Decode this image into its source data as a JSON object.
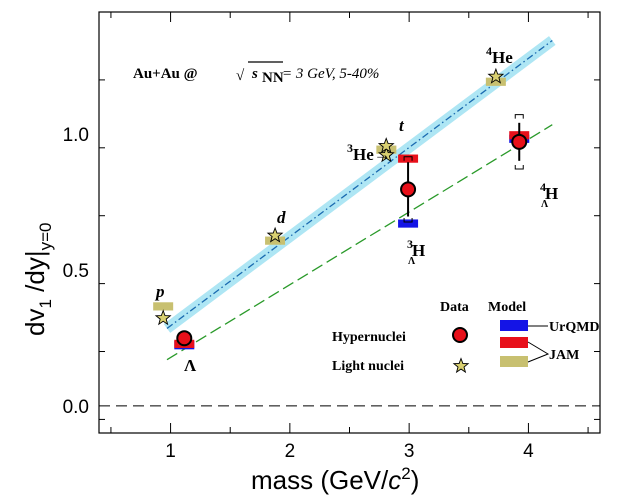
{
  "chart_data": {
    "type": "scatter",
    "title": "Au+Au @ √sNN = 3 GeV, 5-40%",
    "annotation": {
      "prefix": "Au+Au @",
      "sqrt_symbol": "√",
      "s_var": "s",
      "s_sub": "NN",
      "rest": " = 3 GeV, 5-40%"
    },
    "xlabel": {
      "main": "mass (GeV/",
      "c": "c",
      "sup": "2",
      "close": ")"
    },
    "ylabel": {
      "d1": "dv",
      "sub1": "1",
      "mid": " /dy|",
      "sub2": "y=0"
    },
    "xlim": [
      0.4,
      4.6
    ],
    "ylim": [
      -0.1,
      1.45
    ],
    "xticks": [
      1,
      2,
      3,
      4
    ],
    "xtick_labels": [
      "1",
      "2",
      "3",
      "4"
    ],
    "yticks": [
      0.0,
      0.5,
      1.0
    ],
    "ytick_labels": [
      "0.0",
      "0.5",
      "1.0"
    ],
    "reference_line_y": 0.0,
    "series": [
      {
        "name": "Hypernuclei",
        "marker": "circle",
        "color": "#e8101a",
        "points": [
          {
            "x": 1.115,
            "y": 0.249,
            "yerr": 0.02
          },
          {
            "x": 2.991,
            "y": 0.797,
            "yerr": 0.1,
            "ysys": 0.12
          },
          {
            "x": 3.923,
            "y": 0.972,
            "yerr": 0.07,
            "ysys": 0.1
          }
        ]
      },
      {
        "name": "Light nuclei",
        "marker": "star",
        "color": "#d9d070",
        "points": [
          {
            "x": 0.938,
            "y": 0.323
          },
          {
            "x": 1.876,
            "y": 0.627
          },
          {
            "x": 2.809,
            "y": 0.923
          },
          {
            "x": 2.808,
            "y": 0.957
          },
          {
            "x": 3.727,
            "y": 1.212
          }
        ]
      },
      {
        "name": "UrQMD",
        "marker": "band",
        "color": "#1414e6",
        "points": [
          {
            "x": 1.115,
            "y": 0.225
          },
          {
            "x": 2.991,
            "y": 0.673
          },
          {
            "x": 3.923,
            "y": 0.985
          }
        ]
      },
      {
        "name": "JAM",
        "marker": "band",
        "color": "#e8101a",
        "points": [
          {
            "x": 1.115,
            "y": 0.23
          },
          {
            "x": 2.991,
            "y": 0.912
          },
          {
            "x": 3.923,
            "y": 0.998
          }
        ]
      },
      {
        "name": "JAM",
        "marker": "band",
        "color": "#c8c070",
        "points": [
          {
            "x": 0.938,
            "y": 0.368
          },
          {
            "x": 1.876,
            "y": 0.61
          },
          {
            "x": 2.809,
            "y": 0.945
          },
          {
            "x": 3.727,
            "y": 1.195
          }
        ]
      }
    ],
    "fits": [
      {
        "x": [
          0.97,
          4.2
        ],
        "y": [
          0.285,
          1.345
        ],
        "color": "#1a6ab0",
        "style": "dashdot",
        "band_color": "#aee6f4"
      },
      {
        "x": [
          0.97,
          4.2
        ],
        "y": [
          0.17,
          1.035
        ],
        "color": "#2a9a2a",
        "style": "dashed"
      }
    ],
    "point_labels": [
      {
        "key": "p",
        "text": "p",
        "italic": true
      },
      {
        "key": "d",
        "text": "d",
        "italic": true
      },
      {
        "key": "t",
        "text": "t",
        "italic": true
      },
      {
        "key": "he3",
        "sup": "3",
        "text": "He",
        "arrow": "→"
      },
      {
        "key": "he4",
        "sup": "4",
        "text": "He"
      },
      {
        "key": "lambda",
        "text": "Λ"
      },
      {
        "key": "h3l",
        "sup": "3",
        "sub": "Λ",
        "text": "H"
      },
      {
        "key": "h4l",
        "sup": "4",
        "sub": "Λ",
        "text": "H"
      }
    ],
    "legend": {
      "position": "bottom-right",
      "col_data": "Data",
      "col_model": "Model",
      "rows": [
        "Hypernuclei",
        "Light nuclei"
      ],
      "models": [
        "UrQMD",
        "JAM"
      ]
    },
    "grid": false
  }
}
